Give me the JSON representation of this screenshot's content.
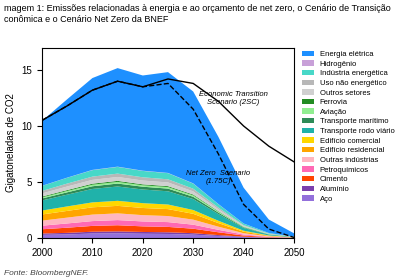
{
  "chart_data": {
    "type": "area",
    "stacked": true,
    "title": "magem 1: Emissões relacionadas à energia e ao orçamento de net zero, o Cenário de Transição\nconômica e o Cenário Net Zero da BNEF",
    "y_label": "Gigatoneladas de CO2",
    "source": "Fonte: BloombergNEF.",
    "x": [
      2000,
      2005,
      2010,
      2015,
      2020,
      2025,
      2030,
      2035,
      2040,
      2045,
      2050
    ],
    "series": [
      {
        "name": "Aço",
        "color": "#9370DB",
        "values": [
          0.28,
          0.32,
          0.4,
          0.42,
          0.38,
          0.36,
          0.3,
          0.18,
          0.08,
          0.03,
          0.01
        ]
      },
      {
        "name": "Alumínio",
        "color": "#7B3FAD",
        "values": [
          0.12,
          0.14,
          0.16,
          0.17,
          0.16,
          0.15,
          0.13,
          0.08,
          0.04,
          0.01,
          0.005
        ]
      },
      {
        "name": "Cimento",
        "color": "#FF4500",
        "values": [
          0.38,
          0.46,
          0.52,
          0.55,
          0.5,
          0.48,
          0.4,
          0.25,
          0.1,
          0.04,
          0.01
        ]
      },
      {
        "name": "Petroquímicos",
        "color": "#FF69B4",
        "values": [
          0.32,
          0.38,
          0.43,
          0.46,
          0.44,
          0.43,
          0.36,
          0.22,
          0.09,
          0.03,
          0.01
        ]
      },
      {
        "name": "Outras indústrias",
        "color": "#FFB6C1",
        "values": [
          0.45,
          0.52,
          0.58,
          0.6,
          0.56,
          0.54,
          0.45,
          0.28,
          0.12,
          0.04,
          0.01
        ]
      },
      {
        "name": "Edifício residencial",
        "color": "#FFA500",
        "values": [
          0.55,
          0.6,
          0.65,
          0.67,
          0.64,
          0.62,
          0.52,
          0.32,
          0.13,
          0.05,
          0.01
        ]
      },
      {
        "name": "Edifício comercial",
        "color": "#FFD700",
        "values": [
          0.35,
          0.4,
          0.44,
          0.45,
          0.43,
          0.41,
          0.34,
          0.21,
          0.09,
          0.03,
          0.01
        ]
      },
      {
        "name": "Transporte rodo viário",
        "color": "#20B2AA",
        "values": [
          0.9,
          1.05,
          1.2,
          1.28,
          1.22,
          1.18,
          0.98,
          0.6,
          0.25,
          0.08,
          0.02
        ]
      },
      {
        "name": "Transporte marítimo",
        "color": "#2E8B57",
        "values": [
          0.18,
          0.21,
          0.24,
          0.26,
          0.25,
          0.24,
          0.2,
          0.13,
          0.06,
          0.02,
          0.005
        ]
      },
      {
        "name": "Aviação",
        "color": "#90EE90",
        "values": [
          0.1,
          0.12,
          0.14,
          0.15,
          0.13,
          0.14,
          0.13,
          0.09,
          0.04,
          0.015,
          0.004
        ]
      },
      {
        "name": "Ferrovia",
        "color": "#228B22",
        "values": [
          0.07,
          0.08,
          0.09,
          0.09,
          0.08,
          0.08,
          0.07,
          0.04,
          0.02,
          0.007,
          0.002
        ]
      },
      {
        "name": "Outros setores",
        "color": "#D0D0D0",
        "values": [
          0.28,
          0.32,
          0.34,
          0.35,
          0.34,
          0.33,
          0.28,
          0.17,
          0.07,
          0.025,
          0.007
        ]
      },
      {
        "name": "Uso não energético",
        "color": "#B8B8B8",
        "values": [
          0.22,
          0.26,
          0.29,
          0.3,
          0.29,
          0.28,
          0.24,
          0.15,
          0.06,
          0.02,
          0.006
        ]
      },
      {
        "name": "Indústria energética",
        "color": "#48D8C8",
        "values": [
          0.45,
          0.52,
          0.58,
          0.6,
          0.57,
          0.55,
          0.46,
          0.3,
          0.14,
          0.05,
          0.01
        ]
      },
      {
        "name": "Hidrogênio",
        "color": "#C8A0D8",
        "values": [
          0.01,
          0.01,
          0.02,
          0.02,
          0.02,
          0.02,
          0.02,
          0.01,
          0.005,
          0.002,
          0.001
        ]
      },
      {
        "name": "Energia elétrica",
        "color": "#1E90FF",
        "values": [
          5.8,
          7.0,
          8.2,
          8.8,
          8.5,
          9.0,
          8.2,
          6.0,
          3.2,
          1.2,
          0.3
        ]
      },
      {
        "type": "line",
        "color": "#000000",
        "line_style": "solid",
        "values": [
          10.5,
          11.8,
          13.2,
          14.0,
          13.5,
          14.2,
          13.8,
          12.2,
          10.0,
          8.2,
          6.8
        ]
      },
      {
        "type": "line",
        "color": "#000000",
        "line_style": "dashed",
        "values": [
          10.5,
          11.8,
          13.2,
          14.0,
          13.5,
          13.8,
          11.5,
          7.5,
          3.0,
          0.8,
          0.05
        ]
      }
    ],
    "annotations": [
      "Economic Transition\nScenario (2SC)",
      "Net Zero  Scenario\n(1.75C)"
    ],
    "xlim": [
      2000,
      2050
    ],
    "ylim": [
      0,
      17
    ],
    "xticks": [
      2000,
      2010,
      2020,
      2030,
      2040,
      2050
    ],
    "yticks": [
      0,
      5,
      10,
      15
    ],
    "legend": "upper left"
  }
}
